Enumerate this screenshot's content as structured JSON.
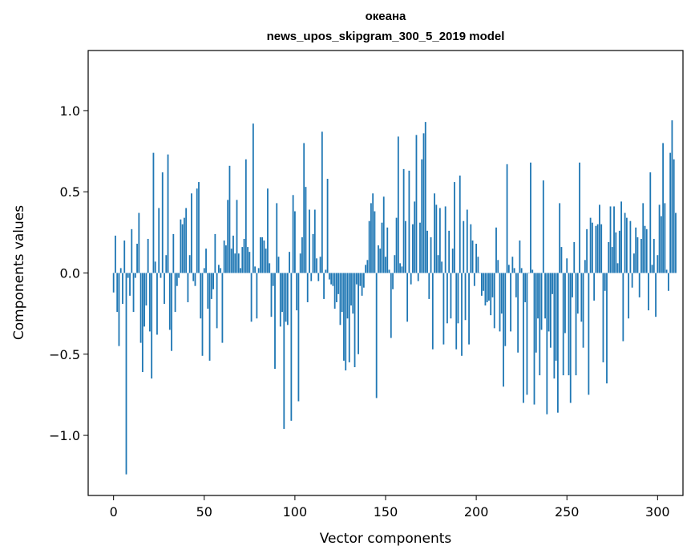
{
  "chart_data": {
    "type": "bar",
    "title": "океана",
    "subtitle": "news_upos_skipgram_300_5_2019 model",
    "xlabel": "Vector components",
    "ylabel": "Components values",
    "xlim": [
      -14,
      314
    ],
    "ylim": [
      -1.37,
      1.37
    ],
    "xticks": [
      0,
      50,
      100,
      150,
      200,
      250,
      300
    ],
    "xtick_labels": [
      "0",
      "50",
      "100",
      "150",
      "200",
      "250",
      "300"
    ],
    "yticks": [
      -1.0,
      -0.5,
      0.0,
      0.5,
      1.0
    ],
    "ytick_labels": [
      "−1.0",
      "−0.5",
      "0.0",
      "0.5",
      "1.0"
    ],
    "bar_color": "#1f77b4",
    "values": [
      -0.12,
      0.23,
      -0.24,
      -0.45,
      0.03,
      -0.19,
      0.2,
      -1.24,
      -0.03,
      -0.14,
      0.27,
      -0.24,
      -0.03,
      0.18,
      0.37,
      -0.43,
      -0.61,
      -0.33,
      -0.2,
      0.21,
      -0.36,
      -0.65,
      0.74,
      0.07,
      -0.38,
      0.4,
      -0.03,
      0.62,
      -0.19,
      0.11,
      0.73,
      -0.35,
      -0.48,
      0.24,
      -0.24,
      -0.08,
      -0.03,
      0.33,
      0.3,
      0.34,
      0.4,
      -0.18,
      0.11,
      0.49,
      -0.05,
      -0.08,
      0.52,
      0.56,
      -0.28,
      -0.51,
      0.03,
      0.15,
      -0.22,
      -0.54,
      -0.16,
      -0.1,
      0.24,
      -0.34,
      0.05,
      0.03,
      -0.43,
      0.2,
      0.17,
      0.45,
      0.66,
      0.15,
      0.23,
      0.12,
      0.45,
      0.12,
      0.03,
      0.16,
      0.21,
      0.7,
      0.16,
      0.13,
      -0.3,
      0.92,
      0.04,
      -0.28,
      0.03,
      0.22,
      0.22,
      0.2,
      0.15,
      0.52,
      0.06,
      -0.27,
      -0.08,
      -0.59,
      0.43,
      0.1,
      -0.33,
      -0.24,
      -0.96,
      -0.3,
      -0.32,
      0.13,
      -0.91,
      0.48,
      0.38,
      -0.23,
      -0.79,
      0.12,
      0.22,
      0.8,
      0.53,
      -0.18,
      0.39,
      -0.05,
      0.24,
      0.39,
      0.09,
      -0.05,
      0.1,
      0.87,
      -0.16,
      0.02,
      0.58,
      -0.04,
      -0.07,
      -0.08,
      -0.22,
      -0.18,
      -0.13,
      -0.32,
      -0.24,
      -0.54,
      -0.6,
      -0.28,
      -0.55,
      -0.2,
      -0.25,
      -0.58,
      -0.07,
      -0.5,
      -0.08,
      -0.14,
      -0.09,
      0.05,
      0.08,
      0.32,
      0.43,
      0.49,
      0.38,
      -0.77,
      0.17,
      0.15,
      0.31,
      0.47,
      0.1,
      0.28,
      0.02,
      -0.4,
      -0.1,
      0.11,
      0.34,
      0.84,
      0.06,
      0.04,
      0.64,
      0.32,
      -0.3,
      0.63,
      -0.07,
      0.3,
      0.44,
      0.85,
      -0.05,
      0.31,
      0.7,
      0.86,
      0.93,
      0.26,
      -0.16,
      0.22,
      -0.47,
      0.49,
      0.42,
      0.11,
      0.4,
      0.07,
      -0.44,
      0.41,
      -0.31,
      0.26,
      -0.28,
      0.15,
      0.56,
      -0.47,
      -0.31,
      0.6,
      -0.51,
      0.32,
      -0.29,
      0.39,
      -0.44,
      0.3,
      0.2,
      -0.08,
      0.18,
      0.1,
      0.0,
      -0.14,
      -0.11,
      -0.2,
      -0.18,
      -0.17,
      -0.26,
      -0.15,
      -0.34,
      0.28,
      0.08,
      -0.36,
      -0.25,
      -0.7,
      -0.45,
      0.67,
      0.05,
      -0.36,
      0.1,
      0.03,
      -0.15,
      -0.49,
      0.2,
      0.03,
      -0.8,
      -0.18,
      -0.75,
      0.0,
      0.68,
      0.02,
      -0.81,
      -0.49,
      -0.28,
      -0.63,
      -0.35,
      0.57,
      -0.28,
      -0.87,
      -0.36,
      -0.46,
      -0.13,
      -0.65,
      -0.54,
      -0.86,
      0.43,
      0.16,
      -0.63,
      -0.37,
      0.09,
      -0.63,
      -0.8,
      -0.15,
      0.19,
      -0.63,
      -0.25,
      0.68,
      -0.3,
      -0.46,
      0.08,
      0.27,
      -0.75,
      0.34,
      0.31,
      -0.17,
      0.29,
      0.3,
      0.42,
      0.3,
      -0.55,
      -0.11,
      -0.68,
      0.19,
      0.41,
      0.16,
      0.41,
      0.25,
      0.06,
      0.26,
      0.44,
      -0.42,
      0.37,
      0.34,
      -0.28,
      0.32,
      -0.09,
      0.12,
      0.28,
      0.22,
      -0.15,
      0.21,
      0.43,
      0.29,
      0.27,
      -0.23,
      0.62,
      0.05,
      0.21,
      -0.27,
      0.11,
      0.42,
      0.35,
      0.8,
      0.43,
      0.02,
      -0.11,
      0.74,
      0.94,
      0.7,
      0.37
    ]
  }
}
